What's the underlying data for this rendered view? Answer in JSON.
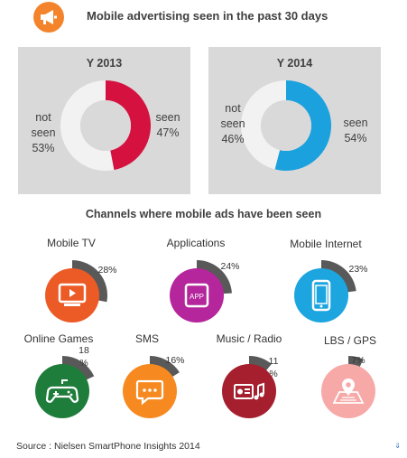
{
  "header": {
    "title": "Mobile advertising seen in the past 30 days",
    "icon": "megaphone-icon",
    "icon_color": "#f4842b"
  },
  "section2_title": "Channels where mobile ads have been seen",
  "source": "Source :  Nielsen SmartPhone Insights 2014",
  "chart_data": [
    {
      "type": "pie",
      "title": "Y 2013",
      "categories": [
        "seen",
        "not seen"
      ],
      "values": [
        47,
        53
      ],
      "labels": {
        "seen": [
          "seen",
          "47%"
        ],
        "not_seen": [
          "not",
          "seen",
          "53%"
        ]
      },
      "colors": [
        "#d5123f",
        "#f2f2f2"
      ]
    },
    {
      "type": "pie",
      "title": "Y 2014",
      "categories": [
        "seen",
        "not seen"
      ],
      "values": [
        54,
        46
      ],
      "labels": {
        "seen": [
          "seen",
          "54%"
        ],
        "not_seen": [
          "not",
          "seen",
          "46%"
        ]
      },
      "colors": [
        "#1ba1dd",
        "#f2f2f2"
      ]
    },
    {
      "type": "bar",
      "title": "Channels where mobile ads have been seen",
      "categories": [
        "Mobile TV",
        "Applications",
        "Mobile Internet",
        "Online Games",
        "SMS",
        "Music / Radio",
        "LBS / GPS"
      ],
      "values": [
        28,
        24,
        23,
        18,
        16,
        11,
        7
      ],
      "value_labels": [
        [
          "28%"
        ],
        [
          "24%"
        ],
        [
          "23%"
        ],
        [
          "18",
          "%"
        ],
        [
          "16%"
        ],
        [
          "11",
          "%"
        ],
        [
          "7%"
        ]
      ],
      "icons": [
        "tv-icon",
        "app-icon",
        "smartphone-icon",
        "gamepad-icon",
        "chat-bubble-icon",
        "radio-music-icon",
        "map-pin-icon"
      ],
      "colors": [
        "#ec5a26",
        "#b5259b",
        "#1da5df",
        "#1f7d3c",
        "#f68a21",
        "#a51f2e",
        "#f7a9a8"
      ]
    }
  ]
}
